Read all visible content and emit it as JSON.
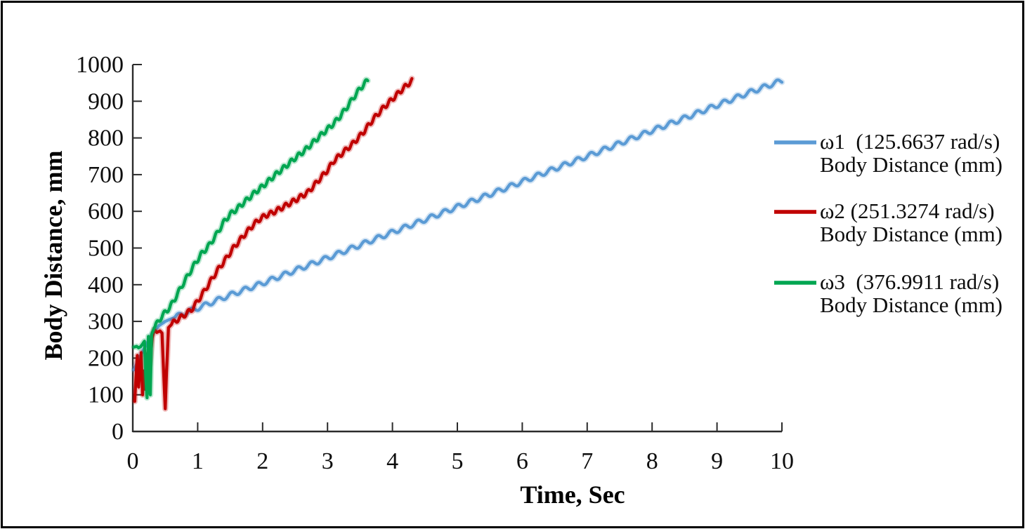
{
  "chart_data": {
    "type": "line",
    "title": "",
    "xlabel": "Time, Sec",
    "ylabel": "Body Distance, mm",
    "xlim": [
      0,
      10
    ],
    "ylim": [
      0,
      1000
    ],
    "xticks": [
      0,
      1,
      2,
      3,
      4,
      5,
      6,
      7,
      8,
      9,
      10
    ],
    "yticks": [
      0,
      100,
      200,
      300,
      400,
      500,
      600,
      700,
      800,
      900,
      1000
    ],
    "grid": false,
    "legend_position": "right-center",
    "background": "#ffffff",
    "axis_color": "#2b2b2b",
    "text_color": "#0d0d0d",
    "series": [
      {
        "id": "omega1",
        "legend_line1": "ω1  (125.6637 rad/s)",
        "legend_line2": "Body Distance (mm)",
        "angular_velocity_rad_s": 125.6637,
        "color": "#5B9BD5",
        "wiggle": {
          "amplitude_mm": 6.5,
          "period_s": 0.205,
          "start_t": 0.65
        },
        "points": [
          [
            0.02,
            168
          ],
          [
            0.1,
            201
          ],
          [
            0.2,
            234
          ],
          [
            0.3,
            266
          ],
          [
            0.4,
            288
          ],
          [
            0.5,
            300
          ],
          [
            0.62,
            309
          ],
          [
            0.8,
            323
          ],
          [
            1,
            336
          ],
          [
            1.5,
            372
          ],
          [
            2,
            404
          ],
          [
            2.5,
            439
          ],
          [
            3,
            473
          ],
          [
            3.5,
            508
          ],
          [
            4,
            543
          ],
          [
            4.5,
            577
          ],
          [
            5,
            612
          ],
          [
            5.5,
            646
          ],
          [
            6,
            681
          ],
          [
            6.5,
            716
          ],
          [
            7,
            750
          ],
          [
            7.5,
            785
          ],
          [
            8,
            820
          ],
          [
            8.5,
            854
          ],
          [
            9,
            889
          ],
          [
            9.5,
            924
          ],
          [
            10,
            956
          ]
        ]
      },
      {
        "id": "omega2",
        "legend_line1": "ω2 (251.3274 rad/s)",
        "legend_line2": "Body Distance (mm)",
        "angular_velocity_rad_s": 251.3274,
        "color": "#C00000",
        "wiggle": {
          "amplitude_mm": 6.5,
          "period_s": 0.115,
          "start_t": 0.6
        },
        "points": [
          [
            0.03,
            82
          ],
          [
            0.05,
            150
          ],
          [
            0.07,
            207
          ],
          [
            0.09,
            121
          ],
          [
            0.11,
            170
          ],
          [
            0.13,
            215
          ],
          [
            0.15,
            100
          ],
          [
            0.17,
            165
          ],
          [
            0.19,
            115
          ],
          [
            0.21,
            211
          ],
          [
            0.23,
            130
          ],
          [
            0.26,
            180
          ],
          [
            0.3,
            255
          ],
          [
            0.33,
            278
          ],
          [
            0.37,
            270
          ],
          [
            0.42,
            274
          ],
          [
            0.45,
            268
          ],
          [
            0.48,
            140
          ],
          [
            0.5,
            62
          ],
          [
            0.52,
            160
          ],
          [
            0.55,
            283
          ],
          [
            0.62,
            296
          ],
          [
            0.7,
            306
          ],
          [
            0.8,
            318
          ],
          [
            0.9,
            331
          ],
          [
            1,
            355
          ],
          [
            1.1,
            382
          ],
          [
            1.2,
            410
          ],
          [
            1.3,
            438
          ],
          [
            1.43,
            469
          ],
          [
            1.55,
            500
          ],
          [
            1.7,
            532
          ],
          [
            1.85,
            562
          ],
          [
            1.95,
            578
          ],
          [
            2.05,
            589
          ],
          [
            2.15,
            596
          ],
          [
            2.3,
            610
          ],
          [
            2.5,
            630
          ],
          [
            2.7,
            652
          ],
          [
            2.85,
            682
          ],
          [
            3,
            712
          ],
          [
            3.1,
            738
          ],
          [
            3.25,
            762
          ],
          [
            3.4,
            786
          ],
          [
            3.55,
            815
          ],
          [
            3.7,
            850
          ],
          [
            3.85,
            880
          ],
          [
            4,
            906
          ],
          [
            4.15,
            932
          ],
          [
            4.3,
            956
          ]
        ]
      },
      {
        "id": "omega3",
        "legend_line1": "ω3  (376.9911 rad/s)",
        "legend_line2": "Body Distance (mm)",
        "angular_velocity_rad_s": 376.9911,
        "color": "#00A651",
        "wiggle": {
          "amplitude_mm": 6.5,
          "period_s": 0.115,
          "start_t": 0.34
        },
        "points": [
          [
            0.02,
            230
          ],
          [
            0.06,
            232
          ],
          [
            0.09,
            228
          ],
          [
            0.12,
            231
          ],
          [
            0.15,
            238
          ],
          [
            0.18,
            246
          ],
          [
            0.2,
            150
          ],
          [
            0.22,
            92
          ],
          [
            0.24,
            259
          ],
          [
            0.26,
            118
          ],
          [
            0.27,
            100
          ],
          [
            0.29,
            264
          ],
          [
            0.33,
            282
          ],
          [
            0.4,
            302
          ],
          [
            0.5,
            325
          ],
          [
            0.57,
            338
          ],
          [
            0.65,
            362
          ],
          [
            0.75,
            395
          ],
          [
            0.85,
            425
          ],
          [
            0.95,
            455
          ],
          [
            1.05,
            482
          ],
          [
            1.18,
            508
          ],
          [
            1.3,
            540
          ],
          [
            1.4,
            570
          ],
          [
            1.5,
            592
          ],
          [
            1.6,
            606
          ],
          [
            1.7,
            622
          ],
          [
            1.8,
            638
          ],
          [
            1.9,
            654
          ],
          [
            2,
            668
          ],
          [
            2.1,
            684
          ],
          [
            2.2,
            700
          ],
          [
            2.35,
            722
          ],
          [
            2.5,
            745
          ],
          [
            2.65,
            766
          ],
          [
            2.78,
            788
          ],
          [
            2.9,
            808
          ],
          [
            3,
            824
          ],
          [
            3.1,
            840
          ],
          [
            3.2,
            860
          ],
          [
            3.3,
            884
          ],
          [
            3.4,
            910
          ],
          [
            3.5,
            934
          ],
          [
            3.58,
            950
          ],
          [
            3.62,
            957
          ]
        ]
      }
    ]
  }
}
